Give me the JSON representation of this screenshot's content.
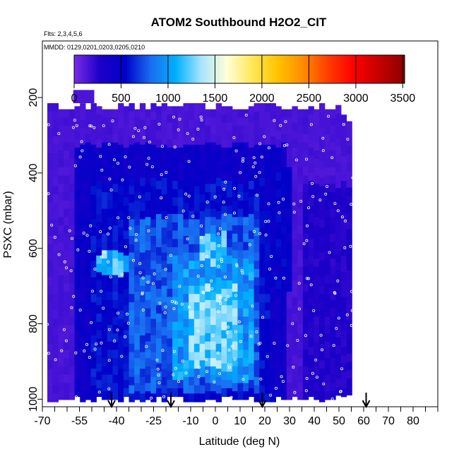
{
  "title": "ATOM2 Southbound H2O2_CIT",
  "flights_label": "Flts: 2,3,4,5,6",
  "dates_label": "MMDD: 0129,0201,0203,0205,0210",
  "chart_data": {
    "type": "heatmap",
    "title": "ATOM2 Southbound H2O2_CIT",
    "xlabel": "Latitude (deg N)",
    "ylabel": "PSXC (mbar)",
    "xlim": [
      -70,
      90
    ],
    "ylim": [
      1020,
      50
    ],
    "y_reversed": true,
    "x_ticks": [
      -70,
      -55,
      -40,
      -25,
      -10,
      0,
      10,
      20,
      30,
      40,
      50,
      60,
      70,
      80
    ],
    "y_ticks": [
      200,
      400,
      600,
      800,
      1000
    ],
    "colorbar": {
      "ticks": [
        0,
        500,
        1000,
        1500,
        2000,
        2500,
        3000,
        3500
      ],
      "range": [
        0,
        3520
      ],
      "colors": [
        "#7a2be8",
        "#1d00c8",
        "#0000c8",
        "#1a6cf0",
        "#00b0ff",
        "#a8e4ff",
        "#ffffd8",
        "#ffe85a",
        "#ffc400",
        "#ff8c00",
        "#ff3c00",
        "#ff0000",
        "#c40000",
        "#8c0000"
      ]
    },
    "profile_arrows_lat": [
      -42,
      -18,
      19,
      61
    ],
    "data_extent": {
      "lat": [
        -68,
        56
      ],
      "pres": [
        215,
        1000
      ]
    },
    "regions": [
      {
        "lat": [
          -68,
          56
        ],
        "pres": [
          215,
          1000
        ],
        "value": 150
      },
      {
        "lat": [
          -56,
          28
        ],
        "pres": [
          330,
          1000
        ],
        "value": 420
      },
      {
        "lat": [
          -50,
          22
        ],
        "pres": [
          420,
          1000
        ],
        "value": 560
      },
      {
        "lat": [
          -35,
          18
        ],
        "pres": [
          520,
          980
        ],
        "value": 760
      },
      {
        "lat": [
          -48,
          -36
        ],
        "pres": [
          610,
          670
        ],
        "value": 1150
      },
      {
        "lat": [
          -18,
          15
        ],
        "pres": [
          630,
          950
        ],
        "value": 980
      },
      {
        "lat": [
          -10,
          8
        ],
        "pres": [
          700,
          920
        ],
        "value": 1250
      },
      {
        "lat": [
          -6,
          4
        ],
        "pres": [
          560,
          640
        ],
        "value": 1150
      },
      {
        "lat": [
          20,
          30
        ],
        "pres": [
          380,
          720
        ],
        "value": 500
      },
      {
        "lat": [
          35,
          56
        ],
        "pres": [
          430,
          1000
        ],
        "value": 260
      }
    ]
  }
}
